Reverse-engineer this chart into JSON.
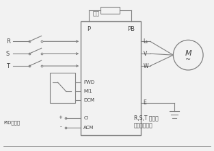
{
  "bg_color": "#f2f2f2",
  "box_color": "#808080",
  "line_color": "#808080",
  "text_color": "#404040",
  "title": "输入",
  "label_P": "P",
  "label_PB": "PB",
  "label_FWD": "FWD",
  "label_MI1": "MI1",
  "label_DCM": "DCM",
  "label_CI": "CI",
  "label_ACM": "ACM",
  "label_E": "E",
  "label_L1": "L₁",
  "label_V": "V",
  "label_W": "W",
  "label_R": "R",
  "label_S": "S",
  "label_T": "T",
  "label_PID": "PID信号端",
  "label_RST": "R,S,T 配用断\n路器（空开）",
  "label_M": "M"
}
